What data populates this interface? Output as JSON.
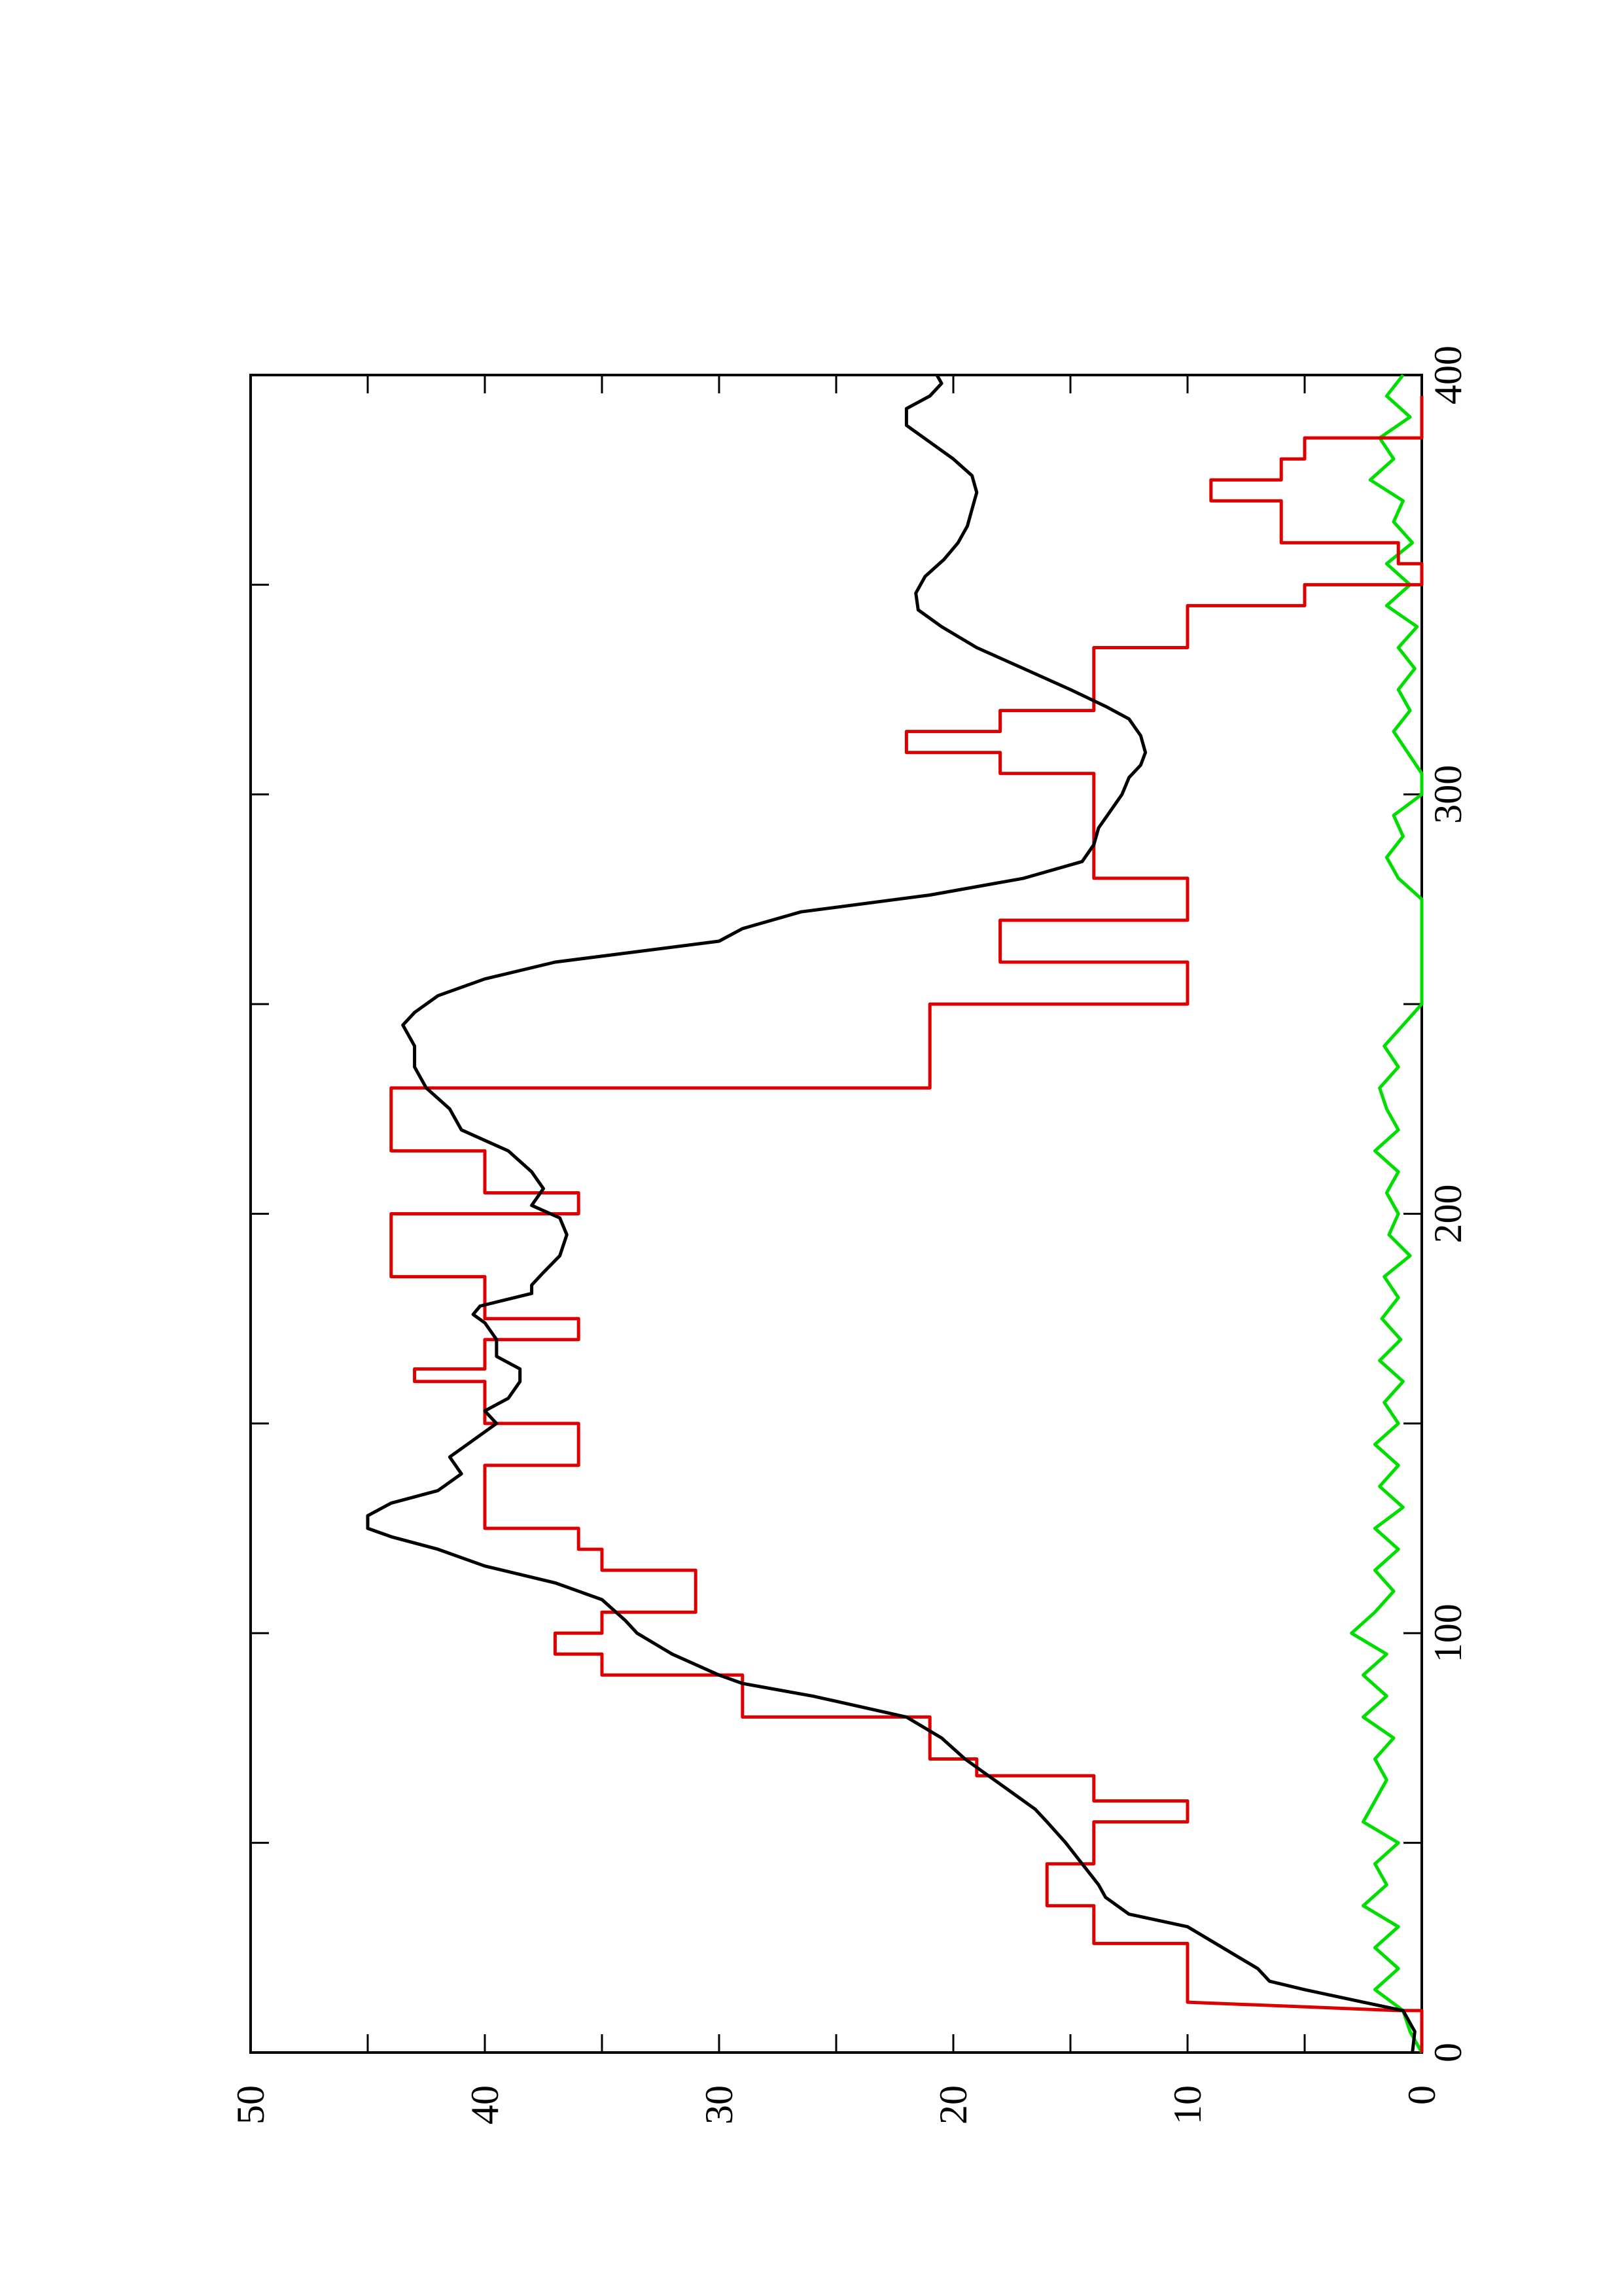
{
  "chart_data": {
    "type": "line",
    "title": "",
    "xlabel": "",
    "ylabel": "",
    "orientation": "rotated 90deg counter-clockwise on the page",
    "xlim": [
      0,
      400
    ],
    "ylim": [
      0,
      50
    ],
    "x_ticks": [
      "0",
      "100",
      "200",
      "300",
      "400"
    ],
    "y_ticks": [
      "0",
      "10",
      "20",
      "30",
      "40",
      "50"
    ],
    "grid": false,
    "legend": "none",
    "series": [
      {
        "color": "#dd0000",
        "style": "step",
        "points": [
          [
            0,
            0
          ],
          [
            10,
            0
          ],
          [
            10,
            1
          ],
          [
            12,
            10
          ],
          [
            26,
            10
          ],
          [
            26,
            14
          ],
          [
            35,
            14
          ],
          [
            35,
            16
          ],
          [
            45,
            16
          ],
          [
            45,
            14
          ],
          [
            55,
            14
          ],
          [
            55,
            10
          ],
          [
            60,
            10
          ],
          [
            60,
            14
          ],
          [
            66,
            14
          ],
          [
            66,
            19
          ],
          [
            70,
            19
          ],
          [
            70,
            21
          ],
          [
            80,
            21
          ],
          [
            80,
            29
          ],
          [
            90,
            29
          ],
          [
            90,
            35
          ],
          [
            95,
            35
          ],
          [
            95,
            37
          ],
          [
            100,
            37
          ],
          [
            100,
            35
          ],
          [
            105,
            35
          ],
          [
            105,
            31
          ],
          [
            115,
            31
          ],
          [
            115,
            35
          ],
          [
            120,
            35
          ],
          [
            120,
            36
          ],
          [
            125,
            36
          ],
          [
            125,
            40
          ],
          [
            140,
            40
          ],
          [
            140,
            36
          ],
          [
            150,
            36
          ],
          [
            150,
            40
          ],
          [
            160,
            40
          ],
          [
            160,
            43
          ],
          [
            163,
            43
          ],
          [
            163,
            40
          ],
          [
            170,
            40
          ],
          [
            170,
            36
          ],
          [
            175,
            36
          ],
          [
            175,
            40
          ],
          [
            185,
            40
          ],
          [
            185,
            44
          ],
          [
            200,
            44
          ],
          [
            200,
            36
          ],
          [
            205,
            36
          ],
          [
            205,
            40
          ],
          [
            215,
            40
          ],
          [
            215,
            44
          ],
          [
            230,
            44
          ],
          [
            230,
            21
          ],
          [
            250,
            21
          ],
          [
            250,
            10
          ],
          [
            260,
            10
          ],
          [
            260,
            18
          ],
          [
            270,
            18
          ],
          [
            270,
            10
          ],
          [
            280,
            10
          ],
          [
            280,
            14
          ],
          [
            290,
            14
          ],
          [
            290,
            14
          ],
          [
            305,
            14
          ],
          [
            305,
            18
          ],
          [
            310,
            18
          ],
          [
            310,
            22
          ],
          [
            315,
            22
          ],
          [
            315,
            18
          ],
          [
            320,
            18
          ],
          [
            320,
            14
          ],
          [
            335,
            14
          ],
          [
            335,
            10
          ],
          [
            345,
            10
          ],
          [
            345,
            5
          ],
          [
            350,
            5
          ],
          [
            350,
            0
          ],
          [
            355,
            0
          ],
          [
            355,
            1
          ],
          [
            360,
            1
          ],
          [
            360,
            6
          ],
          [
            370,
            6
          ],
          [
            370,
            9
          ],
          [
            375,
            9
          ],
          [
            375,
            6
          ],
          [
            380,
            6
          ],
          [
            380,
            5
          ],
          [
            385,
            5
          ],
          [
            385,
            0
          ],
          [
            395,
            0
          ]
        ]
      },
      {
        "color": "#000000",
        "style": "line",
        "points": [
          [
            0,
            0.4
          ],
          [
            5,
            0.3
          ],
          [
            10,
            0.8
          ],
          [
            12,
            2.5
          ],
          [
            15,
            5
          ],
          [
            17,
            6.5
          ],
          [
            20,
            7
          ],
          [
            25,
            8.5
          ],
          [
            30,
            10
          ],
          [
            33,
            12.5
          ],
          [
            37,
            13.5
          ],
          [
            40,
            13.8
          ],
          [
            45,
            14.5
          ],
          [
            50,
            15.2
          ],
          [
            55,
            16
          ],
          [
            58,
            16.5
          ],
          [
            62,
            17.5
          ],
          [
            66,
            18.5
          ],
          [
            70,
            19.5
          ],
          [
            75,
            20.5
          ],
          [
            80,
            22
          ],
          [
            85,
            26
          ],
          [
            88,
            29
          ],
          [
            90,
            30
          ],
          [
            95,
            32
          ],
          [
            100,
            33.5
          ],
          [
            103,
            34
          ],
          [
            108,
            35
          ],
          [
            112,
            37
          ],
          [
            116,
            40
          ],
          [
            120,
            42
          ],
          [
            123,
            44
          ],
          [
            125,
            45
          ],
          [
            128,
            45
          ],
          [
            131,
            44
          ],
          [
            134,
            42
          ],
          [
            138,
            41
          ],
          [
            142,
            41.5
          ],
          [
            146,
            40.5
          ],
          [
            150,
            39.5
          ],
          [
            153,
            40
          ],
          [
            156,
            39
          ],
          [
            160,
            38.5
          ],
          [
            163,
            38.5
          ],
          [
            166,
            39.5
          ],
          [
            170,
            39.5
          ],
          [
            174,
            40
          ],
          [
            176,
            40.5
          ],
          [
            178,
            40.2
          ],
          [
            181,
            38
          ],
          [
            183,
            38
          ],
          [
            186,
            37.5
          ],
          [
            190,
            36.8
          ],
          [
            195,
            36.5
          ],
          [
            199,
            36.8
          ],
          [
            202,
            38
          ],
          [
            206,
            37.5
          ],
          [
            210,
            38
          ],
          [
            215,
            39
          ],
          [
            220,
            41
          ],
          [
            225,
            41.5
          ],
          [
            230,
            42.5
          ],
          [
            235,
            43
          ],
          [
            240,
            43
          ],
          [
            245,
            43.5
          ],
          [
            248,
            43
          ],
          [
            252,
            42
          ],
          [
            256,
            40
          ],
          [
            260,
            37
          ],
          [
            265,
            30
          ],
          [
            268,
            29
          ],
          [
            272,
            26.5
          ],
          [
            276,
            21
          ],
          [
            280,
            17
          ],
          [
            284,
            14.5
          ],
          [
            288,
            14
          ],
          [
            292,
            13.8
          ],
          [
            296,
            13.3
          ],
          [
            300,
            12.8
          ],
          [
            304,
            12.5
          ],
          [
            307,
            12
          ],
          [
            310,
            11.8
          ],
          [
            314,
            12
          ],
          [
            318,
            12.5
          ],
          [
            321,
            13.5
          ],
          [
            325,
            15
          ],
          [
            330,
            17
          ],
          [
            335,
            19
          ],
          [
            340,
            20.5
          ],
          [
            344,
            21.5
          ],
          [
            348,
            21.6
          ],
          [
            352,
            21.2
          ],
          [
            356,
            20.4
          ],
          [
            360,
            19.8
          ],
          [
            364,
            19.4
          ],
          [
            368,
            19.2
          ],
          [
            372,
            19
          ],
          [
            376,
            19.2
          ],
          [
            380,
            20
          ],
          [
            384,
            21
          ],
          [
            388,
            22
          ],
          [
            392,
            22
          ],
          [
            395,
            21
          ],
          [
            398,
            20.5
          ],
          [
            400,
            20.7
          ]
        ]
      },
      {
        "color": "#00dd00",
        "style": "noise",
        "points": [
          [
            0,
            0
          ],
          [
            5,
            0.5
          ],
          [
            10,
            0.8
          ],
          [
            15,
            2
          ],
          [
            20,
            1
          ],
          [
            25,
            2
          ],
          [
            30,
            1
          ],
          [
            35,
            2.5
          ],
          [
            40,
            1.5
          ],
          [
            45,
            2
          ],
          [
            50,
            1
          ],
          [
            55,
            2.5
          ],
          [
            60,
            2
          ],
          [
            65,
            1.5
          ],
          [
            70,
            2
          ],
          [
            75,
            1.2
          ],
          [
            80,
            2.5
          ],
          [
            85,
            1.5
          ],
          [
            90,
            2.5
          ],
          [
            95,
            1.5
          ],
          [
            100,
            3
          ],
          [
            105,
            2
          ],
          [
            110,
            1.2
          ],
          [
            115,
            2
          ],
          [
            120,
            1
          ],
          [
            125,
            2
          ],
          [
            130,
            0.8
          ],
          [
            135,
            1.8
          ],
          [
            140,
            1
          ],
          [
            145,
            2
          ],
          [
            150,
            1
          ],
          [
            155,
            1.6
          ],
          [
            160,
            0.8
          ],
          [
            165,
            1.8
          ],
          [
            170,
            0.9
          ],
          [
            175,
            1.7
          ],
          [
            180,
            1
          ],
          [
            185,
            1.6
          ],
          [
            190,
            0.5
          ],
          [
            195,
            1.4
          ],
          [
            200,
            1
          ],
          [
            205,
            1.5
          ],
          [
            210,
            1
          ],
          [
            215,
            2
          ],
          [
            220,
            1
          ],
          [
            225,
            1.5
          ],
          [
            230,
            1.8
          ],
          [
            235,
            1
          ],
          [
            240,
            1.6
          ],
          [
            245,
            0.8
          ],
          [
            250,
            0
          ],
          [
            255,
            0
          ],
          [
            260,
            0
          ],
          [
            265,
            0
          ],
          [
            270,
            0
          ],
          [
            275,
            0
          ],
          [
            280,
            1
          ],
          [
            285,
            1.5
          ],
          [
            290,
            0.8
          ],
          [
            295,
            1.2
          ],
          [
            300,
            0
          ],
          [
            305,
            0
          ],
          [
            310,
            0.6
          ],
          [
            315,
            1.2
          ],
          [
            320,
            0.5
          ],
          [
            325,
            1
          ],
          [
            330,
            0.3
          ],
          [
            335,
            1
          ],
          [
            340,
            0.2
          ],
          [
            345,
            1.5
          ],
          [
            350,
            0.5
          ],
          [
            355,
            1.5
          ],
          [
            360,
            0.4
          ],
          [
            365,
            1.2
          ],
          [
            370,
            0.8
          ],
          [
            375,
            2.2
          ],
          [
            380,
            1.2
          ],
          [
            385,
            1.8
          ],
          [
            390,
            0.5
          ],
          [
            395,
            1.5
          ],
          [
            400,
            0.8
          ]
        ]
      }
    ]
  }
}
